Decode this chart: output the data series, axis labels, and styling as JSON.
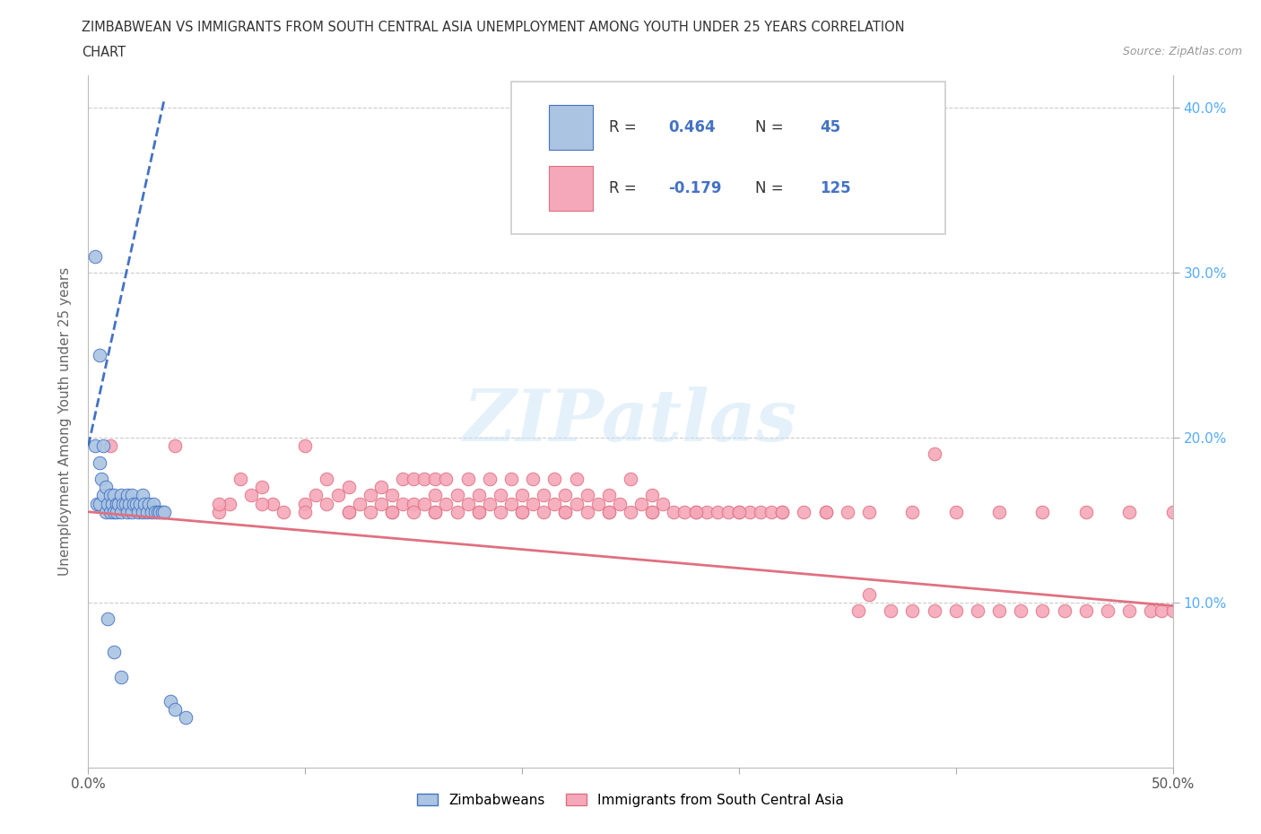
{
  "title_line1": "ZIMBABWEAN VS IMMIGRANTS FROM SOUTH CENTRAL ASIA UNEMPLOYMENT AMONG YOUTH UNDER 25 YEARS CORRELATION",
  "title_line2": "CHART",
  "source": "Source: ZipAtlas.com",
  "ylabel": "Unemployment Among Youth under 25 years",
  "xlim": [
    0.0,
    0.5
  ],
  "ylim": [
    0.0,
    0.42
  ],
  "xticks": [
    0.0,
    0.1,
    0.2,
    0.3,
    0.4,
    0.5
  ],
  "yticks": [
    0.0,
    0.1,
    0.2,
    0.3,
    0.4
  ],
  "xtick_labels_show": [
    "0.0%",
    "50.0%"
  ],
  "right_ytick_labels": [
    "10.0%",
    "20.0%",
    "30.0%",
    "40.0%"
  ],
  "right_yticks": [
    0.1,
    0.2,
    0.3,
    0.4
  ],
  "zim_color": "#aac4e2",
  "imm_color": "#f5a8ba",
  "zim_edge_color": "#4472c4",
  "imm_edge_color": "#e07080",
  "zim_line_color": "#4472c4",
  "imm_line_color": "#e07080",
  "R_zim": 0.464,
  "N_zim": 45,
  "R_imm": -0.179,
  "N_imm": 125,
  "legend_label_zim": "Zimbabweans",
  "legend_label_imm": "Immigrants from South Central Asia",
  "watermark": "ZIPatlas",
  "zim_scatter_x": [
    0.003,
    0.004,
    0.005,
    0.005,
    0.006,
    0.007,
    0.008,
    0.008,
    0.009,
    0.01,
    0.01,
    0.011,
    0.012,
    0.012,
    0.013,
    0.013,
    0.014,
    0.015,
    0.015,
    0.016,
    0.017,
    0.018,
    0.018,
    0.019,
    0.02,
    0.02,
    0.021,
    0.022,
    0.023,
    0.024,
    0.025,
    0.025,
    0.026,
    0.027,
    0.028,
    0.029,
    0.03,
    0.031,
    0.032,
    0.033,
    0.034,
    0.035,
    0.038,
    0.04,
    0.045
  ],
  "zim_scatter_y": [
    0.195,
    0.16,
    0.185,
    0.16,
    0.175,
    0.165,
    0.17,
    0.155,
    0.16,
    0.165,
    0.155,
    0.16,
    0.165,
    0.155,
    0.16,
    0.155,
    0.16,
    0.165,
    0.155,
    0.16,
    0.16,
    0.165,
    0.155,
    0.16,
    0.165,
    0.155,
    0.16,
    0.16,
    0.155,
    0.16,
    0.165,
    0.155,
    0.16,
    0.155,
    0.16,
    0.155,
    0.16,
    0.155,
    0.155,
    0.155,
    0.155,
    0.155,
    0.04,
    0.035,
    0.03
  ],
  "zim_extra_x": [
    0.003,
    0.005,
    0.007,
    0.009,
    0.012,
    0.015
  ],
  "zim_extra_y": [
    0.31,
    0.25,
    0.195,
    0.09,
    0.07,
    0.055
  ],
  "imm_scatter_x": [
    0.01,
    0.02,
    0.04,
    0.06,
    0.065,
    0.07,
    0.075,
    0.08,
    0.085,
    0.09,
    0.1,
    0.1,
    0.105,
    0.11,
    0.11,
    0.115,
    0.12,
    0.12,
    0.125,
    0.13,
    0.13,
    0.135,
    0.135,
    0.14,
    0.14,
    0.145,
    0.145,
    0.15,
    0.15,
    0.15,
    0.155,
    0.155,
    0.16,
    0.16,
    0.16,
    0.165,
    0.165,
    0.17,
    0.17,
    0.175,
    0.175,
    0.18,
    0.18,
    0.185,
    0.185,
    0.19,
    0.19,
    0.195,
    0.195,
    0.2,
    0.2,
    0.205,
    0.205,
    0.21,
    0.21,
    0.215,
    0.215,
    0.22,
    0.22,
    0.225,
    0.225,
    0.23,
    0.23,
    0.235,
    0.24,
    0.24,
    0.245,
    0.25,
    0.25,
    0.255,
    0.26,
    0.26,
    0.265,
    0.27,
    0.275,
    0.28,
    0.285,
    0.29,
    0.295,
    0.3,
    0.305,
    0.31,
    0.315,
    0.32,
    0.33,
    0.34,
    0.35,
    0.355,
    0.36,
    0.37,
    0.38,
    0.39,
    0.4,
    0.41,
    0.42,
    0.43,
    0.44,
    0.45,
    0.46,
    0.47,
    0.48,
    0.49,
    0.495,
    0.5,
    0.06,
    0.08,
    0.1,
    0.12,
    0.14,
    0.16,
    0.18,
    0.2,
    0.22,
    0.24,
    0.26,
    0.28,
    0.3,
    0.32,
    0.34,
    0.36,
    0.38,
    0.4,
    0.42,
    0.44,
    0.46,
    0.48,
    0.5,
    0.39
  ],
  "imm_scatter_y": [
    0.195,
    0.16,
    0.195,
    0.155,
    0.16,
    0.175,
    0.165,
    0.17,
    0.16,
    0.155,
    0.195,
    0.16,
    0.165,
    0.175,
    0.16,
    0.165,
    0.17,
    0.155,
    0.16,
    0.165,
    0.155,
    0.17,
    0.16,
    0.165,
    0.155,
    0.16,
    0.175,
    0.16,
    0.155,
    0.175,
    0.16,
    0.175,
    0.155,
    0.165,
    0.175,
    0.16,
    0.175,
    0.155,
    0.165,
    0.16,
    0.175,
    0.155,
    0.165,
    0.16,
    0.175,
    0.155,
    0.165,
    0.16,
    0.175,
    0.155,
    0.165,
    0.16,
    0.175,
    0.155,
    0.165,
    0.16,
    0.175,
    0.155,
    0.165,
    0.16,
    0.175,
    0.155,
    0.165,
    0.16,
    0.155,
    0.165,
    0.16,
    0.155,
    0.175,
    0.16,
    0.155,
    0.165,
    0.16,
    0.155,
    0.155,
    0.155,
    0.155,
    0.155,
    0.155,
    0.155,
    0.155,
    0.155,
    0.155,
    0.155,
    0.155,
    0.155,
    0.155,
    0.095,
    0.105,
    0.095,
    0.095,
    0.095,
    0.095,
    0.095,
    0.095,
    0.095,
    0.095,
    0.095,
    0.095,
    0.095,
    0.095,
    0.095,
    0.095,
    0.095,
    0.16,
    0.16,
    0.155,
    0.155,
    0.155,
    0.155,
    0.155,
    0.155,
    0.155,
    0.155,
    0.155,
    0.155,
    0.155,
    0.155,
    0.155,
    0.155,
    0.155,
    0.155,
    0.155,
    0.155,
    0.155,
    0.155,
    0.155,
    0.19
  ]
}
